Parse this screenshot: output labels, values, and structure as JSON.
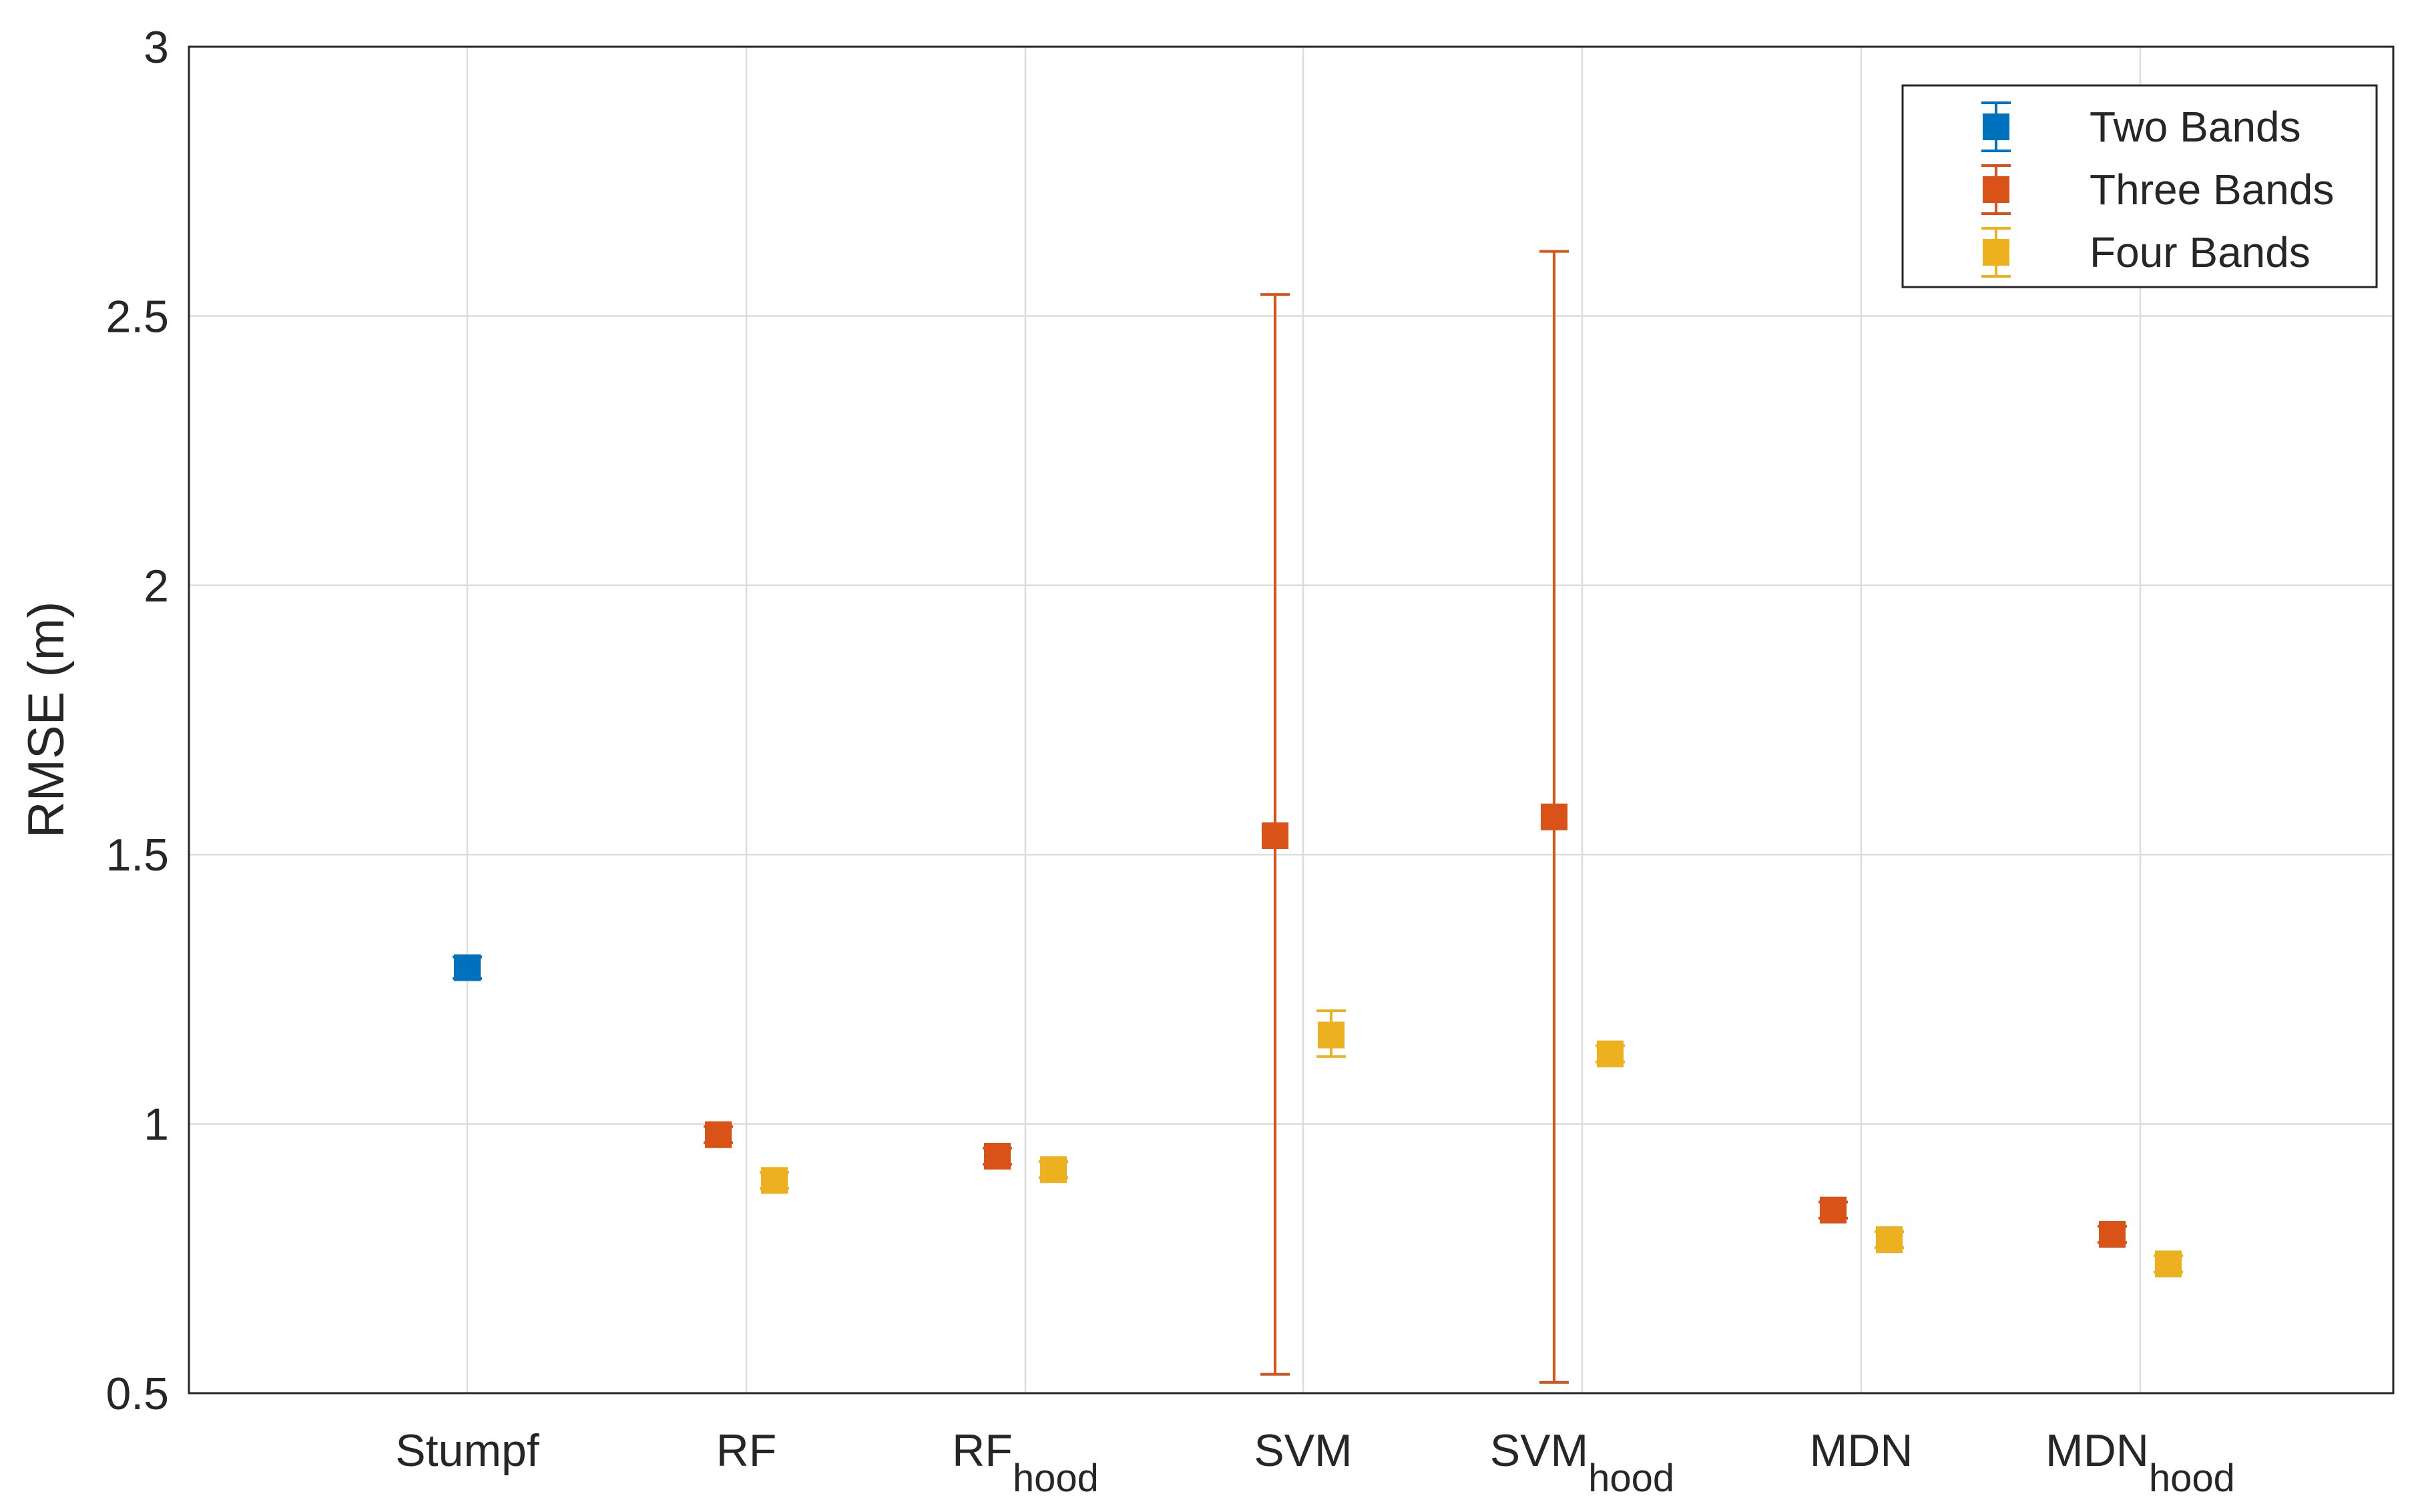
{
  "chart_data": {
    "type": "errorbar",
    "title": "",
    "xlabel": "",
    "ylabel": "RMSE (m)",
    "ylim": [
      0.5,
      3
    ],
    "yticks": [
      0.5,
      1,
      1.5,
      2,
      2.5,
      3
    ],
    "ytick_labels": [
      "0.5",
      "1",
      "1.5",
      "2",
      "2.5",
      "3"
    ],
    "grid": true,
    "categories": [
      {
        "base": "Stumpf",
        "sub": ""
      },
      {
        "base": "RF",
        "sub": ""
      },
      {
        "base": "RF",
        "sub": "hood"
      },
      {
        "base": "SVM",
        "sub": ""
      },
      {
        "base": "SVM",
        "sub": "hood"
      },
      {
        "base": "MDN",
        "sub": ""
      },
      {
        "base": "MDN",
        "sub": "hood"
      }
    ],
    "legend_position": "top-right",
    "series": [
      {
        "name": "Two Bands",
        "color": "#0072BD",
        "points": [
          {
            "category": 0,
            "value": 1.29,
            "low": 1.27,
            "high": 1.31
          }
        ]
      },
      {
        "name": "Three Bands",
        "color": "#D95319",
        "points": [
          {
            "category": 1,
            "value": 0.98,
            "low": 0.965,
            "high": 0.995
          },
          {
            "category": 2,
            "value": 0.94,
            "low": 0.925,
            "high": 0.955
          },
          {
            "category": 3,
            "value": 1.535,
            "low": 0.535,
            "high": 2.54
          },
          {
            "category": 4,
            "value": 1.57,
            "low": 0.52,
            "high": 2.62
          },
          {
            "category": 5,
            "value": 0.84,
            "low": 0.825,
            "high": 0.855
          },
          {
            "category": 6,
            "value": 0.795,
            "low": 0.78,
            "high": 0.81
          }
        ]
      },
      {
        "name": "Four Bands",
        "color": "#EDB120",
        "points": [
          {
            "category": 1,
            "value": 0.895,
            "low": 0.88,
            "high": 0.91
          },
          {
            "category": 2,
            "value": 0.915,
            "low": 0.9,
            "high": 0.93
          },
          {
            "category": 3,
            "value": 1.165,
            "low": 1.125,
            "high": 1.21
          },
          {
            "category": 4,
            "value": 1.13,
            "low": 1.115,
            "high": 1.145
          },
          {
            "category": 5,
            "value": 0.785,
            "low": 0.77,
            "high": 0.8
          },
          {
            "category": 6,
            "value": 0.74,
            "low": 0.725,
            "high": 0.755
          }
        ]
      }
    ]
  }
}
